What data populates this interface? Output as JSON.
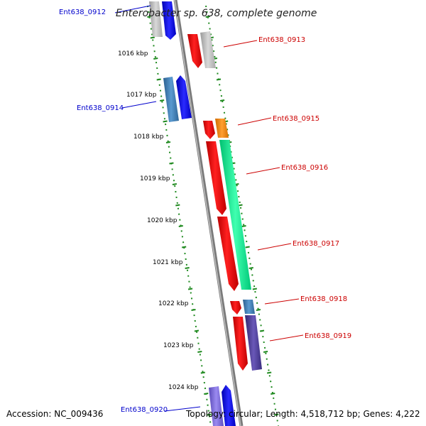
{
  "title": "Enterobacter sp. 638, complete genome",
  "footer": {
    "accession": "Accession: NC_009436",
    "topology": "Topology: circular; Length: 4,518,712 bp; Genes: 4,222"
  },
  "colors": {
    "backbone": "#8a8a8a",
    "tick": "#1f8a1f",
    "left_label": "#0000cc",
    "right_label": "#cc0000",
    "gene_red": "#ff0000",
    "gene_gray": "#bdbdbd",
    "gene_blue": "#0000ff",
    "gene_steelblue": "#3b78b0",
    "gene_orange": "#ff8c00",
    "gene_green": "#00ee99",
    "gene_purple": "#4a3a8c",
    "gene_lilac": "#7a6ad8"
  },
  "axis": {
    "unit": "kbp",
    "ticks": [
      "1016 kbp",
      "1017 kbp",
      "1018 kbp",
      "1019 kbp",
      "1020 kbp",
      "1021 kbp",
      "1022 kbp",
      "1023 kbp",
      "1024 kbp"
    ]
  },
  "genes": [
    {
      "id": "Ent638_0912",
      "strand": "minus",
      "color": "gene_gray",
      "label_side": "left"
    },
    {
      "id": "Ent638_0913",
      "strand": "plus",
      "color": "gene_gray",
      "label_side": "right"
    },
    {
      "id": "Ent638_0914",
      "strand": "minus",
      "color": "gene_blue",
      "label_side": "left"
    },
    {
      "id": "Ent638_0915",
      "strand": "plus",
      "color": "gene_orange",
      "label_side": "right"
    },
    {
      "id": "Ent638_0916",
      "strand": "plus",
      "color": "gene_green",
      "label_side": "right"
    },
    {
      "id": "Ent638_0917",
      "strand": "plus",
      "color": "gene_red",
      "label_side": "right"
    },
    {
      "id": "Ent638_0918",
      "strand": "plus",
      "color": "gene_steelblue",
      "label_side": "right"
    },
    {
      "id": "Ent638_0919",
      "strand": "plus",
      "color": "gene_purple",
      "label_side": "right"
    },
    {
      "id": "Ent638_0920",
      "strand": "minus",
      "color": "gene_blue",
      "label_side": "left"
    }
  ]
}
